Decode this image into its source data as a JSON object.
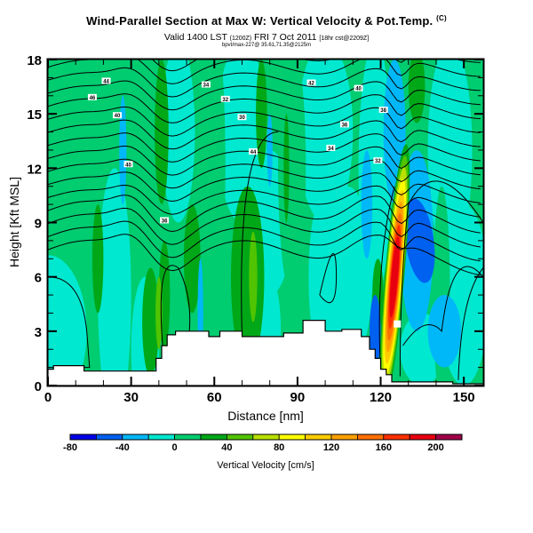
{
  "header": {
    "title": "Wind-Parallel Section at Max W: Vertical Velocity & Pot.Temp.",
    "title_suffix": "(C)",
    "valid_line": "Valid 1400 LST",
    "valid_paren": "(1200Z)",
    "valid_date": "FRI 7 Oct 2011",
    "valid_forecast": "[18hr cst@2209Z]",
    "sub_line": "bpvt/max-227@ 35.61,71.35@2125m"
  },
  "chart_data": {
    "type": "heatmap",
    "title": "Wind-Parallel Section at Max W: Vertical Velocity & Pot.Temp.",
    "xlabel": "Distance [nm]",
    "ylabel": "Height [Kft MSL]",
    "xlim": [
      0,
      157
    ],
    "ylim": [
      0,
      18
    ],
    "xticks": [
      "0",
      "30",
      "60",
      "90",
      "120",
      "150"
    ],
    "xtick_values": [
      0,
      30,
      60,
      90,
      120,
      150
    ],
    "yticks": [
      "0",
      "3",
      "6",
      "9",
      "12",
      "15",
      "18"
    ],
    "ytick_values": [
      0,
      3,
      6,
      9,
      12,
      15,
      18
    ],
    "colorbar": {
      "title": "Vertical Velocity [cm/s]",
      "labels": [
        "-80",
        "-40",
        "0",
        "40",
        "80",
        "120",
        "160",
        "200"
      ],
      "bounds": [
        -80,
        -60,
        -40,
        -20,
        0,
        20,
        40,
        60,
        80,
        100,
        120,
        140,
        160,
        180,
        200,
        220
      ],
      "colors": [
        "#0000e8",
        "#0060f0",
        "#00b8f8",
        "#00e8d0",
        "#00cc70",
        "#00a818",
        "#50c400",
        "#b8e000",
        "#ffff00",
        "#ffcc00",
        "#ffa000",
        "#ff7000",
        "#ff3000",
        "#e80010",
        "#a00048"
      ]
    },
    "background_value_cmps": 10,
    "updraft": {
      "x_nm": 125,
      "peak_height_kft": 6,
      "peak_cmps": 200
    },
    "downdraft": {
      "x_nm": 134,
      "height_kft": 8,
      "min_cmps": -60
    },
    "contour_labels": [
      "44",
      "46",
      "40",
      "40",
      "36",
      "34",
      "32",
      "30",
      "44",
      "42",
      "40",
      "38",
      "36",
      "34",
      "32"
    ],
    "terrain_kft": [
      [
        0,
        0.9
      ],
      [
        2,
        0.9
      ],
      [
        2,
        1.1
      ],
      [
        13,
        1.1
      ],
      [
        13,
        0.8
      ],
      [
        39,
        0.8
      ],
      [
        39,
        1.5
      ],
      [
        41,
        1.5
      ],
      [
        41,
        2.2
      ],
      [
        43,
        2.2
      ],
      [
        43,
        2.8
      ],
      [
        46,
        2.8
      ],
      [
        46,
        3.0
      ],
      [
        58,
        3.0
      ],
      [
        58,
        2.7
      ],
      [
        62,
        2.7
      ],
      [
        62,
        3.0
      ],
      [
        70,
        3.0
      ],
      [
        70,
        2.7
      ],
      [
        85,
        2.7
      ],
      [
        85,
        2.9
      ],
      [
        92,
        2.9
      ],
      [
        92,
        3.6
      ],
      [
        100,
        3.6
      ],
      [
        100,
        3.0
      ],
      [
        106,
        3.0
      ],
      [
        106,
        3.1
      ],
      [
        113,
        3.1
      ],
      [
        113,
        2.7
      ],
      [
        116,
        2.7
      ],
      [
        116,
        2.0
      ],
      [
        118,
        2.0
      ],
      [
        118,
        1.5
      ],
      [
        120,
        1.5
      ],
      [
        120,
        0.9
      ],
      [
        122,
        0.9
      ],
      [
        122,
        0.6
      ],
      [
        124,
        0.6
      ],
      [
        124,
        0.2
      ],
      [
        146,
        0.2
      ],
      [
        146,
        0.1
      ],
      [
        157,
        0.1
      ]
    ]
  }
}
